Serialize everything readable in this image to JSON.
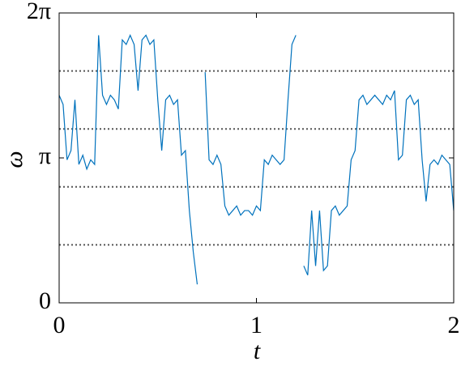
{
  "chart_data": {
    "type": "line",
    "xlabel": "t",
    "ylabel": "ω",
    "xlim": [
      0,
      2
    ],
    "xticks": [
      0,
      1,
      2
    ],
    "ylim": [
      0,
      6.28319
    ],
    "yticks": [
      0,
      {
        "value": 3.14159,
        "label": "π"
      },
      {
        "value": 6.28319,
        "label": "2π"
      }
    ],
    "hlines": [
      1.25664,
      2.51327,
      3.76991,
      5.02655
    ],
    "hline_color": "#555555",
    "color": "#0072bd",
    "x": [
      0,
      0.02,
      0.04,
      0.06,
      0.08,
      0.1,
      0.12,
      0.14,
      0.16,
      0.18,
      0.2,
      0.22,
      0.24,
      0.26,
      0.28,
      0.3,
      0.32,
      0.34,
      0.36,
      0.38,
      0.4,
      0.42,
      0.44,
      0.46,
      0.48,
      0.5,
      0.52,
      0.54,
      0.56,
      0.58,
      0.6,
      0.62,
      0.64,
      0.66,
      0.68,
      0.7,
      0.72,
      0.74,
      0.76,
      0.78,
      0.8,
      0.82,
      0.84,
      0.86,
      0.88,
      0.9,
      0.92,
      0.94,
      0.96,
      0.98,
      1,
      1.02,
      1.04,
      1.06,
      1.08,
      1.1,
      1.12,
      1.14,
      1.16,
      1.18,
      1.2,
      1.22,
      1.24,
      1.26,
      1.28,
      1.3,
      1.32,
      1.34,
      1.36,
      1.38,
      1.4,
      1.42,
      1.44,
      1.46,
      1.48,
      1.5,
      1.52,
      1.54,
      1.56,
      1.58,
      1.6,
      1.62,
      1.64,
      1.66,
      1.68,
      1.7,
      1.72,
      1.74,
      1.76,
      1.78,
      1.8,
      1.82,
      1.84,
      1.86,
      1.88,
      1.9,
      1.92,
      1.94,
      1.96,
      1.98,
      2
    ],
    "values": [
      4.5,
      4.3,
      3.1,
      3.3,
      4.4,
      3.0,
      3.2,
      2.9,
      3.1,
      3.0,
      5.8,
      4.5,
      4.3,
      4.5,
      4.4,
      4.2,
      5.7,
      5.6,
      5.8,
      5.6,
      4.6,
      5.7,
      5.8,
      5.6,
      5.7,
      4.4,
      3.3,
      4.4,
      4.5,
      4.3,
      4.4,
      3.2,
      3.3,
      2.0,
      1.1,
      0.4,
      null,
      5.0,
      3.1,
      3.0,
      3.2,
      3.0,
      2.1,
      1.9,
      2.0,
      2.1,
      1.9,
      2.0,
      2.0,
      1.9,
      2.1,
      2.0,
      3.1,
      3.0,
      3.2,
      3.1,
      3.0,
      3.1,
      4.4,
      5.6,
      5.8,
      null,
      0.8,
      0.6,
      2.0,
      0.8,
      2.0,
      0.7,
      0.8,
      2.0,
      2.1,
      1.9,
      2.0,
      2.1,
      3.1,
      3.3,
      4.4,
      4.5,
      4.3,
      4.4,
      4.5,
      4.4,
      4.3,
      4.5,
      4.4,
      4.6,
      3.1,
      3.2,
      4.4,
      4.5,
      4.3,
      4.4,
      3.1,
      2.2,
      3.0,
      3.1,
      3.0,
      3.2,
      3.1,
      3.0,
      2.0
    ]
  }
}
